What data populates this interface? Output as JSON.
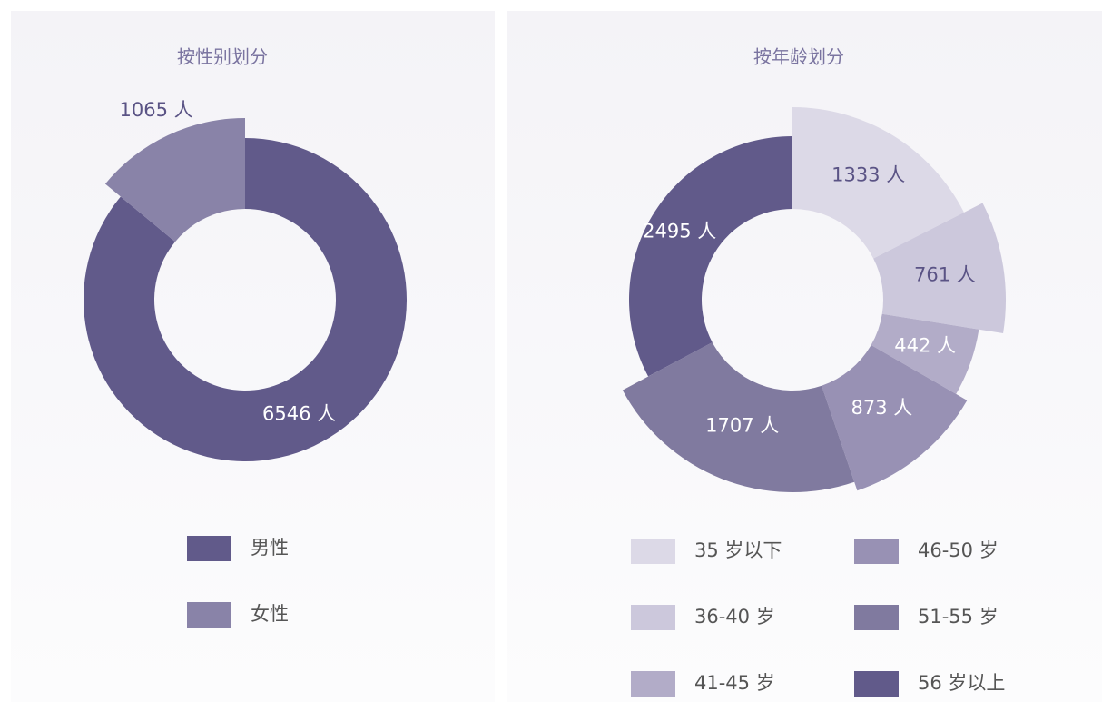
{
  "chart_data": [
    {
      "type": "pie",
      "title": "按性别划分",
      "categories": [
        "男性",
        "女性"
      ],
      "values": [
        6546,
        1065
      ],
      "value_labels": [
        "6546 人",
        "1065 人"
      ],
      "colors": [
        "#615a8a",
        "#8983a8"
      ]
    },
    {
      "type": "pie",
      "title": "按年龄划分",
      "categories": [
        "35 岁以下",
        "36-40 岁",
        "41-45 岁",
        "46-50 岁",
        "51-55 岁",
        "56 岁以上"
      ],
      "values": [
        1333,
        761,
        442,
        873,
        1707,
        2495
      ],
      "value_labels": [
        "1333 人",
        "761 人",
        "442 人",
        "873 人",
        "1707 人",
        "2495 人"
      ],
      "colors": [
        "#dcd9e7",
        "#ccc8dc",
        "#b2acc8",
        "#9891b4",
        "#807a9f",
        "#615a8a"
      ]
    }
  ]
}
